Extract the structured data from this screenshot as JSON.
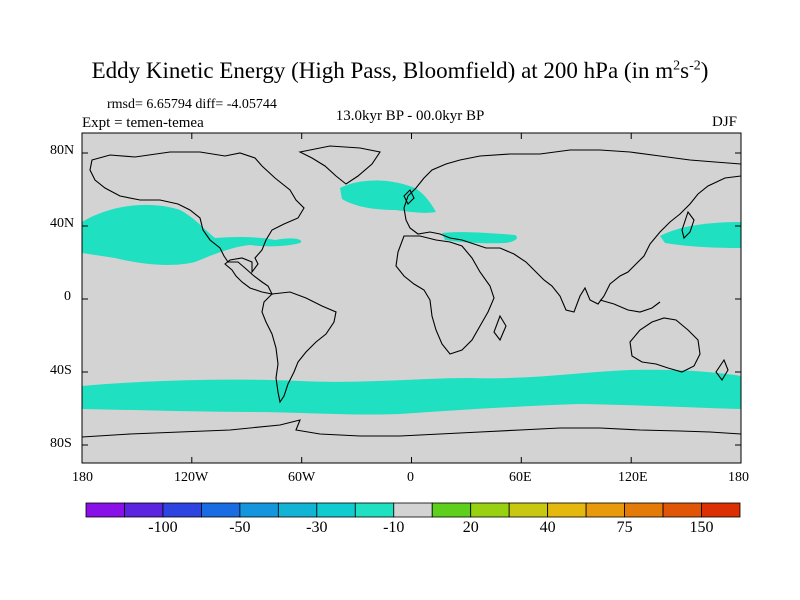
{
  "title": {
    "main": "Eddy Kinetic Energy (High Pass, Bloomfield) at 200 hPa (in m",
    "sup1": "2",
    "mid": "s",
    "sup2": "-2",
    "end": ")"
  },
  "stats": "rmsd= 6.65794 diff= -4.05744",
  "experiment": "Expt = temen-temea",
  "period": "13.0kyr BP - 00.0kyr BP",
  "season": "DJF",
  "axes": {
    "y_labels": [
      "80N",
      "40N",
      "0",
      "40S",
      "80S"
    ],
    "x_labels": [
      "180",
      "120W",
      "60W",
      "0",
      "60E",
      "120E",
      "180"
    ]
  },
  "colors": {
    "background_field": "#d3d3d3",
    "anomaly_fill": "#1fe0c0",
    "anomaly_fill_dark": "#19d6c4",
    "coast": "#000000"
  },
  "colorbar": {
    "colors": [
      "#8a10e8",
      "#5a24e0",
      "#2e44e0",
      "#1a6ce2",
      "#1496de",
      "#12b4d6",
      "#10ccd0",
      "#1fe0c0",
      "#d3d3d3",
      "#5ed01c",
      "#98d012",
      "#c8c810",
      "#e4b80c",
      "#e89a0a",
      "#e47a08",
      "#e05606",
      "#dc3004"
    ],
    "labels": [
      "-100",
      "-50",
      "-30",
      "-10",
      "20",
      "40",
      "75",
      "150"
    ]
  }
}
